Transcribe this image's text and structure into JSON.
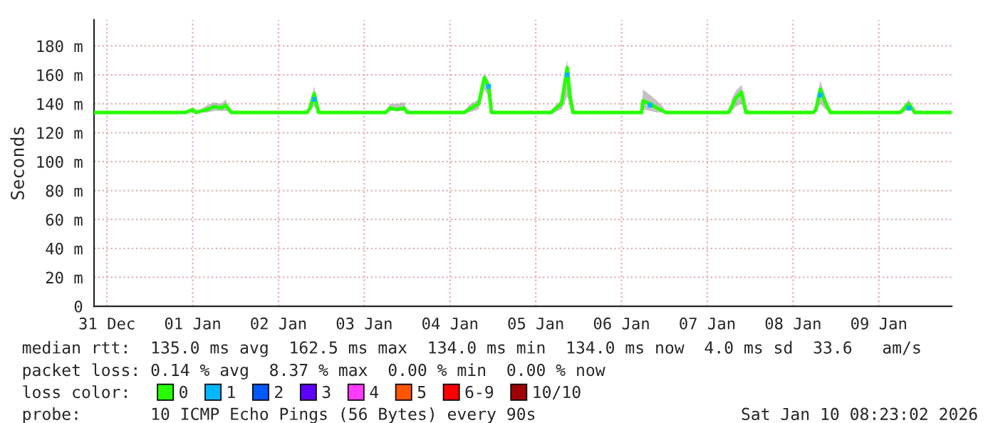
{
  "chart_data": {
    "type": "line",
    "ylabel": "Seconds",
    "xlim": [
      "2025-12-31T08:23",
      "2026-01-10T08:23"
    ],
    "xticks": [
      {
        "value": "2025-12-31T12:00",
        "label": "31 Dec"
      },
      {
        "value": "2026-01-01T12:00",
        "label": "01 Jan"
      },
      {
        "value": "2026-01-02T12:00",
        "label": "02 Jan"
      },
      {
        "value": "2026-01-03T12:00",
        "label": "03 Jan"
      },
      {
        "value": "2026-01-04T12:00",
        "label": "04 Jan"
      },
      {
        "value": "2026-01-05T12:00",
        "label": "05 Jan"
      },
      {
        "value": "2026-01-06T12:00",
        "label": "06 Jan"
      },
      {
        "value": "2026-01-07T12:00",
        "label": "07 Jan"
      },
      {
        "value": "2026-01-08T12:00",
        "label": "08 Jan"
      },
      {
        "value": "2026-01-09T12:00",
        "label": "09 Jan"
      }
    ],
    "ylim": [
      0,
      198
    ],
    "yticks": [
      0,
      {
        "value": 20,
        "label": "20 m"
      },
      {
        "value": 40,
        "label": "40 m"
      },
      {
        "value": 60,
        "label": "60 m"
      },
      {
        "value": 80,
        "label": "80 m"
      },
      {
        "value": 100,
        "label": "100 m"
      },
      {
        "value": 120,
        "label": "120 m"
      },
      {
        "value": 140,
        "label": "140 m"
      },
      {
        "value": 160,
        "label": "160 m"
      },
      {
        "value": 180,
        "label": "180 m"
      }
    ],
    "grid": true,
    "legend": "bottom",
    "legend_title": "loss color:",
    "series": [
      {
        "name": "0",
        "color": "#26ff00",
        "x": [
          "2025-12-31T08:24",
          "2026-01-01T10:00",
          "2026-01-01T12:00",
          "2026-01-01T12:48",
          "2026-01-01T16:00",
          "2026-01-01T18:00",
          "2026-01-01T20:00",
          "2026-01-01T21:12",
          "2026-01-01T22:48",
          "2026-01-02T20:00",
          "2026-01-02T20:48",
          "2026-01-02T22:00",
          "2026-01-02T23:12",
          "2026-01-03T18:00",
          "2026-01-03T19:12",
          "2026-01-03T21:12",
          "2026-01-03T23:12",
          "2026-01-04T00:00",
          "2026-01-04T16:00",
          "2026-01-04T17:12",
          "2026-01-04T20:00",
          "2026-01-04T21:36",
          "2026-01-04T22:48",
          "2026-01-04T23:36",
          "2026-01-05T16:24",
          "2026-01-05T17:12",
          "2026-01-05T19:12",
          "2026-01-05T20:48",
          "2026-01-05T21:36",
          "2026-01-05T22:24",
          "2026-01-06T17:36",
          "2026-01-06T18:00",
          "2026-01-06T20:00",
          "2026-01-06T22:00",
          "2026-01-06T23:36",
          "2026-01-07T00:24",
          "2026-01-07T18:00",
          "2026-01-07T18:48",
          "2026-01-07T20:00",
          "2026-01-07T21:36",
          "2026-01-07T22:48",
          "2026-01-08T17:36",
          "2026-01-08T18:24",
          "2026-01-08T19:36",
          "2026-01-08T21:12",
          "2026-01-08T22:24",
          "2026-01-09T18:00",
          "2026-01-09T18:48",
          "2026-01-09T20:24",
          "2026-01-09T22:00",
          "2026-01-10T08:20"
        ],
        "values": [
          134,
          134,
          136,
          134,
          136,
          138,
          137,
          139,
          134,
          134,
          137,
          147,
          134,
          134,
          137,
          136,
          137,
          134,
          134,
          136,
          140,
          158,
          152,
          134,
          134,
          136,
          140,
          165,
          145,
          134,
          134,
          142,
          140,
          137,
          135,
          134,
          134,
          138,
          144,
          148,
          134,
          134,
          136,
          150,
          140,
          134,
          134,
          136,
          140,
          134,
          134
        ],
        "lower": [
          134,
          134,
          134,
          134,
          134,
          135,
          135,
          135,
          134,
          134,
          135,
          138,
          134,
          134,
          135,
          135,
          135,
          134,
          134,
          134,
          136,
          150,
          145,
          134,
          134,
          134,
          136,
          145,
          138,
          134,
          134,
          136,
          135,
          134,
          134,
          134,
          134,
          135,
          138,
          140,
          134,
          134,
          134,
          140,
          136,
          134,
          134,
          134,
          136,
          134,
          134
        ],
        "upper": [
          134,
          134,
          137,
          134,
          139,
          141,
          140,
          143,
          134,
          134,
          140,
          152,
          134,
          134,
          140,
          140,
          141,
          134,
          134,
          139,
          143,
          161,
          156,
          134,
          134,
          138,
          143,
          170,
          150,
          134,
          134,
          150,
          146,
          142,
          138,
          134,
          134,
          143,
          149,
          153,
          134,
          134,
          138,
          156,
          144,
          134,
          134,
          138,
          143,
          134,
          134
        ]
      },
      {
        "name": "1",
        "color": "#00b8ff",
        "type": "scatter",
        "x": [
          "2026-01-02T22:00",
          "2026-01-04T22:48",
          "2026-01-05T20:48",
          "2026-01-06T20:00",
          "2026-01-08T19:36",
          "2026-01-09T20:24"
        ],
        "values": [
          143,
          152,
          160,
          139,
          146,
          137
        ]
      },
      {
        "name": "2",
        "color": "#0059ff",
        "type": "scatter"
      },
      {
        "name": "3",
        "color": "#5e00ff",
        "type": "scatter"
      },
      {
        "name": "4",
        "color": "#ff3aff",
        "type": "scatter"
      },
      {
        "name": "5",
        "color": "#ff5500",
        "type": "scatter"
      },
      {
        "name": "6-9",
        "color": "#ff0000",
        "type": "scatter"
      },
      {
        "name": "10/10",
        "color": "#a10000",
        "type": "scatter"
      }
    ],
    "annotations": [
      "median rtt:  135.0 ms avg  162.5 ms max  134.0 ms min  134.0 ms now  4.0 ms sd  33.6   am/s",
      "packet loss: 0.14 % avg  8.37 % max  0.00 % min  0.00 % now",
      "probe:       10 ICMP Echo Pings (56 Bytes) every 90s",
      "Sat Jan 10 08:23:02 2026"
    ]
  }
}
